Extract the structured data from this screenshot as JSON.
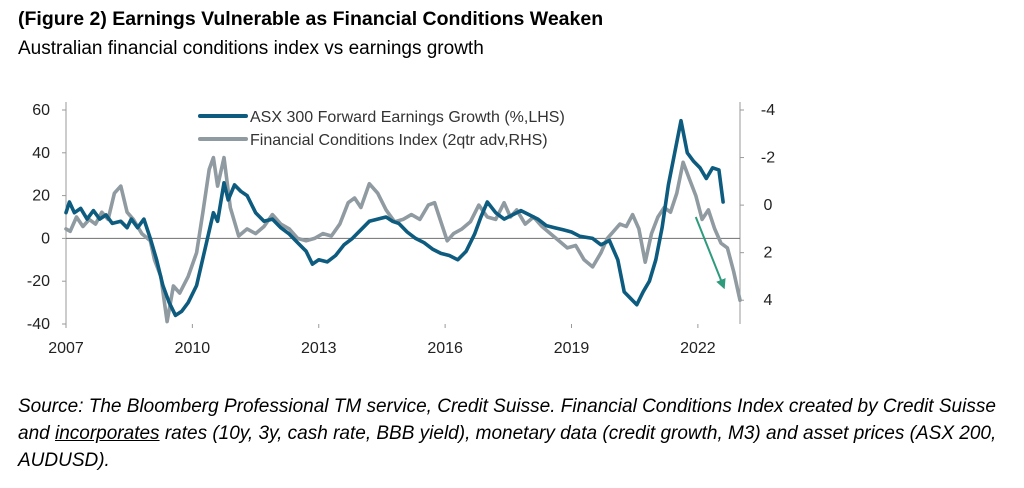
{
  "header": {
    "title": "(Figure 2) Earnings Vulnerable as Financial Conditions Weaken",
    "subtitle": "Australian financial conditions index vs earnings growth"
  },
  "source": {
    "part1": "Source: The Bloomberg Professional TM service, Credit Suisse. Financial Conditions Index created by Credit Suisse and ",
    "underlined": "incorporates",
    "part2": " rates (10y, 3y, cash rate, BBB yield), monetary data (credit growth, M3) and asset prices (ASX 200, AUDUSD)."
  },
  "chart_data": {
    "type": "line",
    "title": "",
    "xlabel": "",
    "ylabel": "",
    "xlim": [
      2007,
      2023
    ],
    "x_ticks": [
      "2007",
      "2010",
      "2013",
      "2016",
      "2019",
      "2022"
    ],
    "ylim_left": [
      -40,
      60
    ],
    "y_ticks_left": [
      "60",
      "40",
      "20",
      "0",
      "-20",
      "-40"
    ],
    "ylim_right": [
      -4,
      5
    ],
    "right_axis_inverted": true,
    "y_ticks_right": [
      "-4",
      "-2",
      "0",
      "2",
      "4"
    ],
    "legend_position": "top-center",
    "grid": false,
    "annotation": "green downward arrow near end of series",
    "colors": {
      "earnings": "#0d5b7f",
      "fci": "#8f9aa1",
      "arrow": "#2e9b7c"
    },
    "series": [
      {
        "name": "ASX 300 Forward Earnings Growth (%,LHS)",
        "axis": "left",
        "points": [
          [
            2007.0,
            12
          ],
          [
            2007.08,
            17
          ],
          [
            2007.2,
            12
          ],
          [
            2007.35,
            14
          ],
          [
            2007.5,
            9
          ],
          [
            2007.65,
            13
          ],
          [
            2007.8,
            9
          ],
          [
            2007.95,
            11
          ],
          [
            2008.1,
            7
          ],
          [
            2008.3,
            8
          ],
          [
            2008.45,
            5
          ],
          [
            2008.55,
            9
          ],
          [
            2008.7,
            5
          ],
          [
            2008.85,
            9
          ],
          [
            2009.0,
            0
          ],
          [
            2009.15,
            -10
          ],
          [
            2009.3,
            -22
          ],
          [
            2009.45,
            -30
          ],
          [
            2009.6,
            -36
          ],
          [
            2009.75,
            -34
          ],
          [
            2009.9,
            -30
          ],
          [
            2010.1,
            -22
          ],
          [
            2010.3,
            -5
          ],
          [
            2010.5,
            12
          ],
          [
            2010.6,
            8
          ],
          [
            2010.75,
            26
          ],
          [
            2010.85,
            18
          ],
          [
            2011.0,
            25
          ],
          [
            2011.15,
            22
          ],
          [
            2011.3,
            20
          ],
          [
            2011.5,
            12
          ],
          [
            2011.7,
            8
          ],
          [
            2011.9,
            9
          ],
          [
            2012.1,
            5
          ],
          [
            2012.3,
            2
          ],
          [
            2012.5,
            -2
          ],
          [
            2012.7,
            -6
          ],
          [
            2012.85,
            -12
          ],
          [
            2013.0,
            -10
          ],
          [
            2013.2,
            -11
          ],
          [
            2013.4,
            -8
          ],
          [
            2013.6,
            -3
          ],
          [
            2013.8,
            0
          ],
          [
            2014.0,
            4
          ],
          [
            2014.2,
            8
          ],
          [
            2014.4,
            9
          ],
          [
            2014.6,
            10
          ],
          [
            2014.75,
            8
          ],
          [
            2014.9,
            7
          ],
          [
            2015.1,
            3
          ],
          [
            2015.3,
            0
          ],
          [
            2015.5,
            -2
          ],
          [
            2015.7,
            -5
          ],
          [
            2015.9,
            -7
          ],
          [
            2016.1,
            -8
          ],
          [
            2016.3,
            -10
          ],
          [
            2016.5,
            -6
          ],
          [
            2016.7,
            2
          ],
          [
            2016.85,
            10
          ],
          [
            2017.0,
            17
          ],
          [
            2017.2,
            12
          ],
          [
            2017.4,
            9
          ],
          [
            2017.6,
            11
          ],
          [
            2017.8,
            13
          ],
          [
            2018.0,
            11
          ],
          [
            2018.2,
            9
          ],
          [
            2018.4,
            6
          ],
          [
            2018.6,
            5
          ],
          [
            2018.8,
            4
          ],
          [
            2019.0,
            3
          ],
          [
            2019.2,
            1
          ],
          [
            2019.5,
            0
          ],
          [
            2019.7,
            -3
          ],
          [
            2019.9,
            -1
          ],
          [
            2020.1,
            -10
          ],
          [
            2020.25,
            -25
          ],
          [
            2020.4,
            -28
          ],
          [
            2020.55,
            -31
          ],
          [
            2020.7,
            -25
          ],
          [
            2020.85,
            -20
          ],
          [
            2021.0,
            -10
          ],
          [
            2021.15,
            5
          ],
          [
            2021.3,
            25
          ],
          [
            2021.45,
            40
          ],
          [
            2021.6,
            55
          ],
          [
            2021.75,
            40
          ],
          [
            2021.9,
            36
          ],
          [
            2022.05,
            33
          ],
          [
            2022.2,
            28
          ],
          [
            2022.35,
            33
          ],
          [
            2022.5,
            32
          ],
          [
            2022.6,
            17
          ]
        ]
      },
      {
        "name": "Financial Conditions Index (2qtr adv,RHS)",
        "axis": "right",
        "points": [
          [
            2007.0,
            1.0
          ],
          [
            2007.1,
            1.1
          ],
          [
            2007.25,
            0.5
          ],
          [
            2007.4,
            0.9
          ],
          [
            2007.55,
            0.6
          ],
          [
            2007.7,
            0.8
          ],
          [
            2007.85,
            0.3
          ],
          [
            2008.0,
            0.6
          ],
          [
            2008.15,
            -0.5
          ],
          [
            2008.3,
            -0.8
          ],
          [
            2008.45,
            0.3
          ],
          [
            2008.6,
            0.6
          ],
          [
            2008.8,
            1.2
          ],
          [
            2009.0,
            1.5
          ],
          [
            2009.1,
            2.3
          ],
          [
            2009.25,
            3.0
          ],
          [
            2009.4,
            4.9
          ],
          [
            2009.55,
            3.4
          ],
          [
            2009.7,
            3.7
          ],
          [
            2009.9,
            3.0
          ],
          [
            2010.1,
            2.0
          ],
          [
            2010.25,
            0.3
          ],
          [
            2010.4,
            -1.5
          ],
          [
            2010.5,
            -2.0
          ],
          [
            2010.6,
            -0.8
          ],
          [
            2010.75,
            -2.0
          ],
          [
            2010.9,
            0.1
          ],
          [
            2011.1,
            1.3
          ],
          [
            2011.3,
            1.0
          ],
          [
            2011.5,
            1.2
          ],
          [
            2011.7,
            0.9
          ],
          [
            2011.9,
            0.4
          ],
          [
            2012.1,
            0.8
          ],
          [
            2012.3,
            1.0
          ],
          [
            2012.5,
            1.4
          ],
          [
            2012.7,
            1.5
          ],
          [
            2012.9,
            1.4
          ],
          [
            2013.1,
            1.2
          ],
          [
            2013.3,
            1.3
          ],
          [
            2013.5,
            0.8
          ],
          [
            2013.7,
            -0.1
          ],
          [
            2013.85,
            -0.3
          ],
          [
            2014.0,
            0.1
          ],
          [
            2014.2,
            -0.9
          ],
          [
            2014.4,
            -0.5
          ],
          [
            2014.6,
            0.2
          ],
          [
            2014.8,
            0.7
          ],
          [
            2015.0,
            0.6
          ],
          [
            2015.2,
            0.4
          ],
          [
            2015.4,
            0.6
          ],
          [
            2015.6,
            0.0
          ],
          [
            2015.75,
            -0.1
          ],
          [
            2015.9,
            0.7
          ],
          [
            2016.05,
            1.5
          ],
          [
            2016.2,
            1.2
          ],
          [
            2016.4,
            1.0
          ],
          [
            2016.6,
            0.7
          ],
          [
            2016.8,
            0.0
          ],
          [
            2017.0,
            0.5
          ],
          [
            2017.2,
            0.6
          ],
          [
            2017.4,
            -0.1
          ],
          [
            2017.55,
            0.5
          ],
          [
            2017.7,
            0.2
          ],
          [
            2017.9,
            0.8
          ],
          [
            2018.1,
            0.5
          ],
          [
            2018.3,
            0.9
          ],
          [
            2018.5,
            1.2
          ],
          [
            2018.7,
            1.5
          ],
          [
            2018.9,
            1.8
          ],
          [
            2019.1,
            1.7
          ],
          [
            2019.3,
            2.3
          ],
          [
            2019.5,
            2.6
          ],
          [
            2019.7,
            2.0
          ],
          [
            2019.85,
            1.4
          ],
          [
            2020.0,
            1.1
          ],
          [
            2020.15,
            0.8
          ],
          [
            2020.3,
            0.9
          ],
          [
            2020.45,
            0.4
          ],
          [
            2020.6,
            1.0
          ],
          [
            2020.75,
            2.4
          ],
          [
            2020.9,
            1.2
          ],
          [
            2021.05,
            0.5
          ],
          [
            2021.2,
            0.1
          ],
          [
            2021.35,
            0.3
          ],
          [
            2021.5,
            -0.5
          ],
          [
            2021.65,
            -1.8
          ],
          [
            2021.8,
            -1.1
          ],
          [
            2021.95,
            -0.4
          ],
          [
            2022.1,
            0.6
          ],
          [
            2022.25,
            0.2
          ],
          [
            2022.4,
            1.0
          ],
          [
            2022.55,
            1.6
          ],
          [
            2022.7,
            1.8
          ],
          [
            2022.85,
            2.8
          ],
          [
            2023.0,
            4.0
          ]
        ]
      }
    ]
  }
}
